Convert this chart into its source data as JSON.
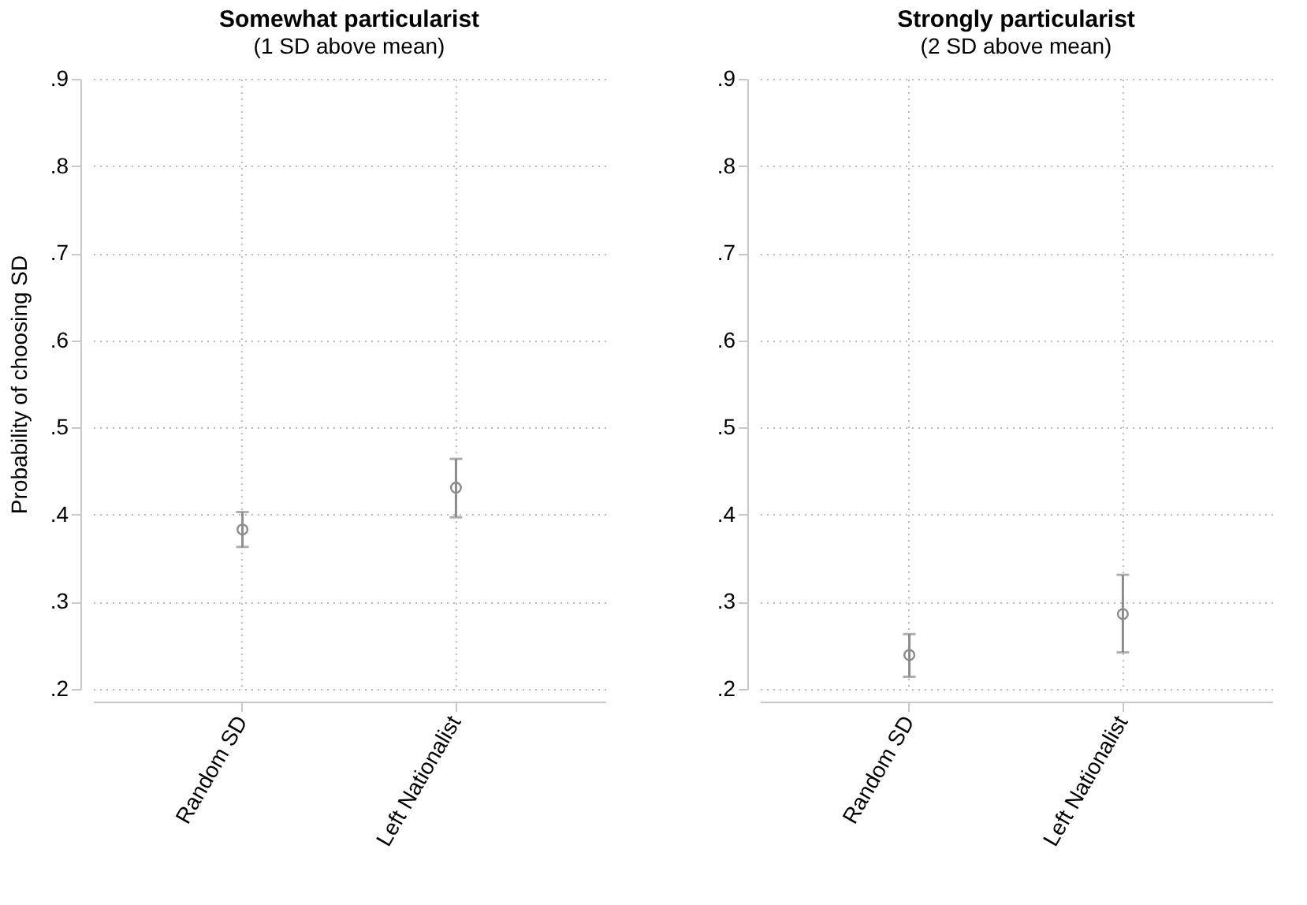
{
  "chart_data": [
    {
      "type": "scatter",
      "title": "Somewhat particularist",
      "subtitle": "(1 SD above mean)",
      "ylabel": "Probability of choosing SD",
      "categories": [
        "Random SD",
        "Left Nationalist"
      ],
      "series": [
        {
          "color": "#8c8c8c",
          "values": [
            0.383,
            0.431
          ],
          "errors": [
            [
              0.363,
              0.403
            ],
            [
              0.397,
              0.464
            ]
          ]
        }
      ],
      "ylim": [
        0.2,
        0.9
      ],
      "yticks": [
        {
          "value": 0.2,
          "label": ".2"
        },
        {
          "value": 0.3,
          "label": ".3"
        },
        {
          "value": 0.4,
          "label": ".4"
        },
        {
          "value": 0.5,
          "label": ".5"
        },
        {
          "value": 0.6,
          "label": ".6"
        },
        {
          "value": 0.7,
          "label": ".7"
        },
        {
          "value": 0.8,
          "label": ".8"
        },
        {
          "value": 0.9,
          "label": ".9"
        }
      ],
      "grid": true,
      "marker": "circle",
      "legend": false
    },
    {
      "type": "scatter",
      "title": "Strongly particularist",
      "subtitle": "(2 SD above mean)",
      "categories": [
        "Random SD",
        "Left Nationalist"
      ],
      "series": [
        {
          "color": "#8c8c8c",
          "values": [
            0.239,
            0.286
          ],
          "errors": [
            [
              0.214,
              0.263
            ],
            [
              0.242,
              0.331
            ]
          ]
        }
      ],
      "ylim": [
        0.2,
        0.9
      ],
      "yticks": [
        {
          "value": 0.2,
          "label": ".2"
        },
        {
          "value": 0.3,
          "label": ".3"
        },
        {
          "value": 0.4,
          "label": ".4"
        },
        {
          "value": 0.5,
          "label": ".5"
        },
        {
          "value": 0.6,
          "label": ".6"
        },
        {
          "value": 0.7,
          "label": ".7"
        },
        {
          "value": 0.8,
          "label": ".8"
        },
        {
          "value": 0.9,
          "label": ".9"
        }
      ],
      "grid": true,
      "marker": "circle",
      "legend": false
    }
  ]
}
